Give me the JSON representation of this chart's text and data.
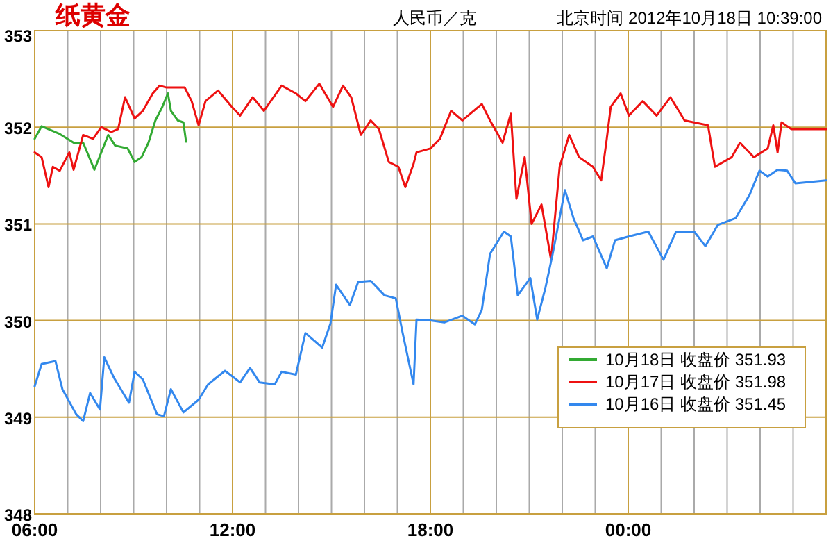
{
  "chart_data": {
    "type": "line",
    "title": "纸黄金",
    "ylabel": "人民币／克",
    "annotations": [
      "北京时间 2012年10月18日 10:39:00"
    ],
    "xlim": [
      6,
      30
    ],
    "ylim": [
      348,
      353
    ],
    "xticks": [
      {
        "value": 6,
        "label": "06:00"
      },
      {
        "value": 7,
        "label": null
      },
      {
        "value": 8,
        "label": null
      },
      {
        "value": 9,
        "label": null
      },
      {
        "value": 10,
        "label": null
      },
      {
        "value": 11,
        "label": null
      },
      {
        "value": 12,
        "label": "12:00"
      },
      {
        "value": 13,
        "label": null
      },
      {
        "value": 14,
        "label": null
      },
      {
        "value": 15,
        "label": null
      },
      {
        "value": 16,
        "label": null
      },
      {
        "value": 17,
        "label": null
      },
      {
        "value": 18,
        "label": "18:00"
      },
      {
        "value": 19,
        "label": null
      },
      {
        "value": 20,
        "label": null
      },
      {
        "value": 21,
        "label": null
      },
      {
        "value": 22,
        "label": null
      },
      {
        "value": 23,
        "label": null
      },
      {
        "value": 24,
        "label": "00:00"
      },
      {
        "value": 25,
        "label": null
      },
      {
        "value": 26,
        "label": null
      },
      {
        "value": 27,
        "label": null
      },
      {
        "value": 28,
        "label": null
      },
      {
        "value": 29,
        "label": null
      },
      {
        "value": 30,
        "label": null
      }
    ],
    "yticks": [
      348,
      349,
      350,
      351,
      352,
      353
    ],
    "grid": true,
    "legend": "bottom right",
    "marker": "none",
    "line_style": "solid",
    "series": [
      {
        "name": "10月18日 收盘价 351.93",
        "color": "#33aa33",
        "x": [
          6.0,
          6.21,
          6.76,
          7.18,
          7.47,
          7.81,
          8.23,
          8.44,
          8.82,
          9.03,
          9.24,
          9.45,
          9.66,
          9.87,
          10.04,
          10.13,
          10.34,
          10.51,
          10.59
        ],
        "values": [
          351.88,
          352.01,
          351.93,
          351.84,
          351.84,
          351.56,
          351.92,
          351.81,
          351.78,
          351.64,
          351.69,
          351.84,
          352.07,
          352.21,
          352.35,
          352.17,
          352.07,
          352.05,
          351.85
        ]
      },
      {
        "name": "10月17日 收盘价 351.98",
        "color": "#ee1111",
        "x": [
          6.0,
          6.21,
          6.42,
          6.55,
          6.76,
          7.05,
          7.18,
          7.47,
          7.77,
          8.02,
          8.32,
          8.53,
          8.74,
          9.03,
          9.28,
          9.58,
          9.79,
          10.0,
          10.55,
          10.76,
          10.97,
          11.18,
          11.56,
          11.98,
          12.23,
          12.61,
          12.95,
          13.49,
          13.92,
          14.21,
          14.63,
          15.05,
          15.35,
          15.6,
          15.89,
          16.19,
          16.44,
          16.74,
          17.03,
          17.24,
          17.49,
          17.58,
          18.0,
          18.29,
          18.63,
          18.97,
          19.56,
          19.81,
          20.19,
          20.44,
          20.61,
          20.86,
          21.07,
          21.37,
          21.66,
          21.92,
          22.21,
          22.51,
          22.93,
          23.18,
          23.35,
          23.47,
          23.77,
          24.02,
          24.44,
          24.86,
          25.28,
          25.71,
          26.42,
          26.63,
          27.14,
          27.39,
          27.81,
          28.23,
          28.4,
          28.53,
          28.65,
          28.95,
          30
        ],
        "values": [
          351.74,
          351.69,
          351.38,
          351.59,
          351.55,
          351.74,
          351.56,
          351.92,
          351.88,
          352.0,
          351.95,
          351.98,
          352.31,
          352.09,
          352.17,
          352.35,
          352.43,
          352.41,
          352.41,
          352.27,
          352.02,
          352.27,
          352.38,
          352.21,
          352.12,
          352.31,
          352.17,
          352.43,
          352.35,
          352.27,
          352.45,
          352.21,
          352.43,
          352.31,
          351.92,
          352.07,
          351.98,
          351.64,
          351.59,
          351.38,
          351.62,
          351.74,
          351.78,
          351.88,
          352.17,
          352.07,
          352.24,
          352.07,
          351.84,
          352.14,
          351.26,
          351.69,
          351.0,
          351.2,
          350.63,
          351.59,
          351.92,
          351.69,
          351.59,
          351.45,
          351.88,
          352.21,
          352.35,
          352.12,
          352.27,
          352.12,
          352.31,
          352.07,
          352.02,
          351.59,
          351.69,
          351.84,
          351.69,
          351.78,
          352.02,
          351.74,
          352.05,
          351.98,
          351.98
        ]
      },
      {
        "name": "10月16日 收盘价 351.45",
        "color": "#3388ee",
        "x": [
          6.0,
          6.21,
          6.63,
          6.84,
          7.26,
          7.47,
          7.68,
          7.98,
          8.11,
          8.4,
          8.86,
          9.03,
          9.28,
          9.71,
          9.92,
          10.13,
          10.51,
          10.97,
          11.26,
          11.77,
          12.23,
          12.53,
          12.82,
          13.28,
          13.49,
          13.92,
          14.21,
          14.72,
          14.97,
          15.14,
          15.56,
          15.81,
          16.19,
          16.61,
          16.95,
          17.16,
          17.49,
          17.58,
          18.0,
          18.42,
          18.97,
          19.35,
          19.56,
          19.81,
          20.23,
          20.44,
          20.65,
          21.03,
          21.24,
          21.49,
          21.71,
          22.08,
          22.34,
          22.63,
          22.93,
          23.35,
          23.6,
          24.02,
          24.61,
          25.07,
          25.45,
          26.0,
          26.34,
          26.72,
          27.26,
          27.68,
          27.98,
          28.23,
          28.53,
          28.82,
          29.07,
          30
        ],
        "values": [
          349.32,
          349.55,
          349.58,
          349.29,
          349.03,
          348.96,
          349.25,
          349.08,
          349.62,
          349.41,
          349.15,
          349.47,
          349.39,
          349.03,
          349.01,
          349.29,
          349.05,
          349.18,
          349.34,
          349.48,
          349.36,
          349.51,
          349.36,
          349.34,
          349.47,
          349.44,
          349.87,
          349.72,
          349.97,
          350.37,
          350.16,
          350.4,
          350.41,
          350.26,
          350.23,
          349.87,
          349.34,
          350.01,
          350.0,
          349.98,
          350.05,
          349.96,
          350.11,
          350.69,
          350.92,
          350.87,
          350.26,
          350.44,
          350.01,
          350.34,
          350.69,
          351.35,
          351.06,
          350.83,
          350.87,
          350.54,
          350.83,
          350.87,
          350.92,
          350.63,
          350.92,
          350.92,
          350.77,
          350.99,
          351.06,
          351.3,
          351.55,
          351.49,
          351.56,
          351.55,
          351.42,
          351.45
        ]
      }
    ]
  }
}
